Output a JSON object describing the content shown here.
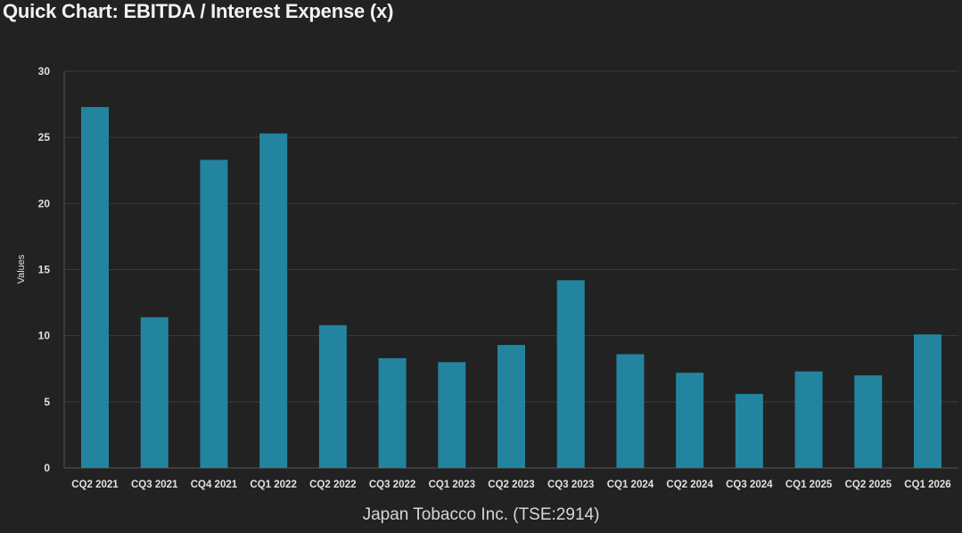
{
  "page": {
    "title": "Quick Chart: EBITDA / Interest Expense (x)",
    "footer": "Japan Tobacco Inc. (TSE:2914)"
  },
  "colors": {
    "background": "#222222",
    "bar": "#23849f",
    "grid": "#3c3c3c",
    "axis_text": "#e0e0e0"
  },
  "chart_data": {
    "type": "bar",
    "title": "Quick Chart: EBITDA / Interest Expense (x)",
    "xlabel": "",
    "ylabel": "Values",
    "ylim": [
      0,
      30
    ],
    "yticks": [
      0,
      5,
      10,
      15,
      20,
      25,
      30
    ],
    "grid": true,
    "legend": "none",
    "categories": [
      "CQ2 2021",
      "CQ3 2021",
      "CQ4 2021",
      "CQ1 2022",
      "CQ2 2022",
      "CQ3 2022",
      "CQ1 2023",
      "CQ2 2023",
      "CQ3 2023",
      "CQ1 2024",
      "CQ2 2024",
      "CQ3 2024",
      "CQ1 2025",
      "CQ2 2025",
      "CQ1 2026"
    ],
    "values": [
      27.3,
      11.4,
      23.3,
      25.3,
      10.8,
      8.3,
      8.0,
      9.3,
      14.2,
      8.6,
      7.2,
      5.6,
      7.3,
      7.0,
      10.1
    ]
  }
}
